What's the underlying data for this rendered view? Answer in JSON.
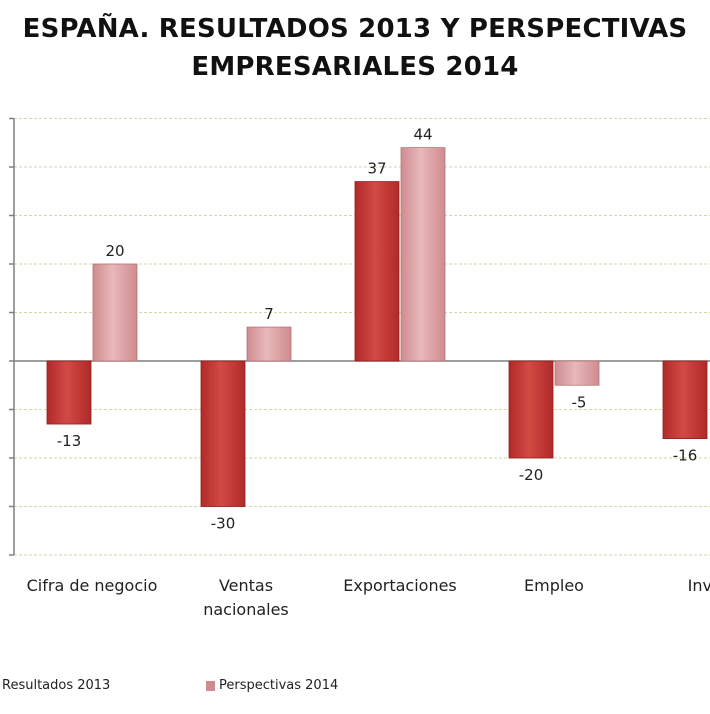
{
  "colors": {
    "series1": "#b02a2a",
    "series1_light": "#d24a44",
    "series2": "#cf8c8f",
    "series2_light": "#e8b8ba",
    "grid": "#d6d6a8",
    "axis": "#7f7f7f"
  },
  "chart_data": {
    "type": "bar",
    "title": "ESPAÑA. RESULTADOS 2013 Y PERSPECTIVAS EMPRESARIALES 2014",
    "title_lines": [
      "ESPAÑA. RESULTADOS 2013 Y PERSPECTIVAS",
      "EMPRESARIALES 2014"
    ],
    "categories": [
      "Cifra de negocio",
      "Ventas nacionales",
      "Exportaciones",
      "Empleo",
      "Inver"
    ],
    "category_lines": [
      [
        "Cifra de negocio"
      ],
      [
        "Ventas",
        "nacionales"
      ],
      [
        "Exportaciones"
      ],
      [
        "Empleo"
      ],
      [
        "Inver"
      ]
    ],
    "series": [
      {
        "name": "Resultados 2013",
        "values": [
          -13,
          -30,
          37,
          -20,
          -16
        ]
      },
      {
        "name": "Perspectivas 2014",
        "values": [
          20,
          7,
          44,
          -5,
          null
        ]
      }
    ],
    "data_labels": [
      [
        "-13",
        "-30",
        "37",
        "-20",
        "-16"
      ],
      [
        "20",
        "7",
        "44",
        "-5",
        ""
      ]
    ],
    "ylim": [
      -40,
      50
    ],
    "gridlines": true,
    "legend_position": "bottom-left",
    "xlabel": "",
    "ylabel": ""
  }
}
